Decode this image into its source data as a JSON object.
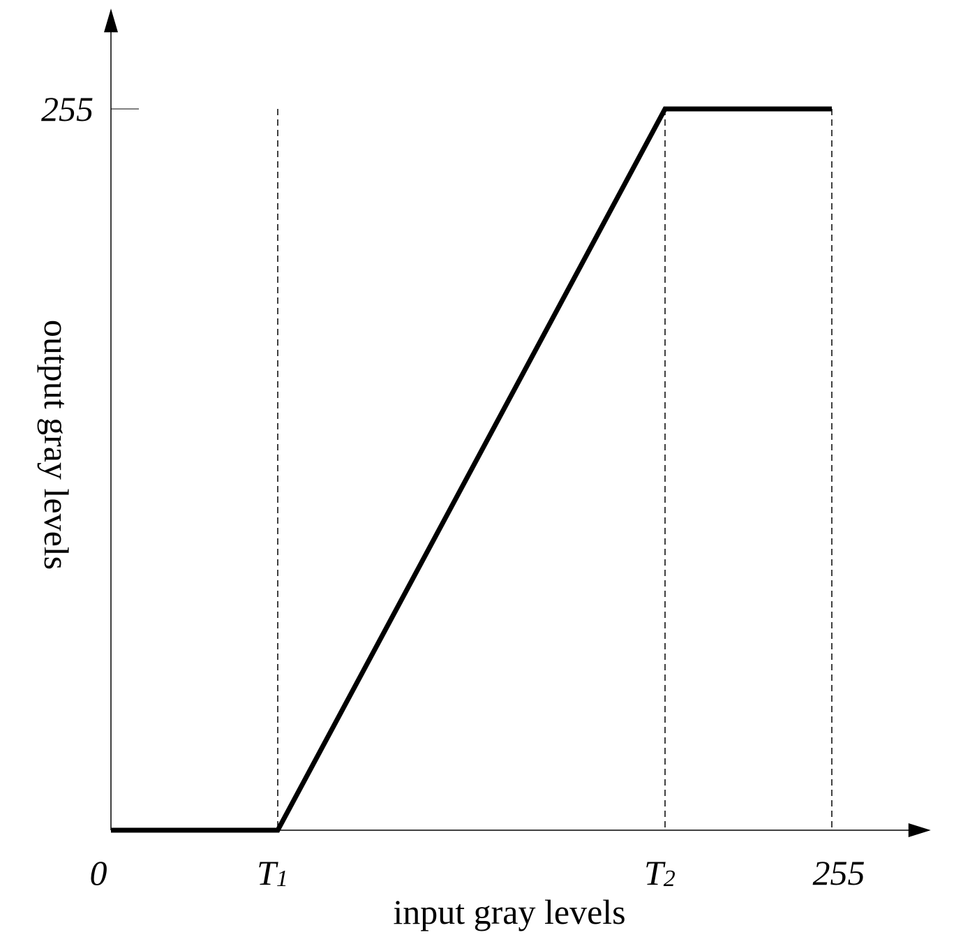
{
  "chart_data": {
    "type": "line",
    "title": "",
    "xlabel": "input gray levels",
    "ylabel": "output gray levels",
    "xlim": [
      0,
      290
    ],
    "ylim": [
      0,
      290
    ],
    "x_ticks": [
      {
        "label": "0",
        "value": 0
      },
      {
        "label": "T",
        "sub": "1",
        "value": 59
      },
      {
        "label": "T",
        "sub": "2",
        "value": 196
      },
      {
        "label": "255",
        "value": 255
      }
    ],
    "y_ticks": [
      {
        "label": "255",
        "value": 255
      }
    ],
    "series": [
      {
        "x": [
          0,
          59,
          196,
          255
        ],
        "y": [
          0,
          0,
          255,
          255
        ]
      }
    ],
    "reference_lines_x": [
      59,
      196,
      255
    ],
    "grid": false,
    "colors": {
      "line": "#000000",
      "axes": "#000000"
    }
  }
}
